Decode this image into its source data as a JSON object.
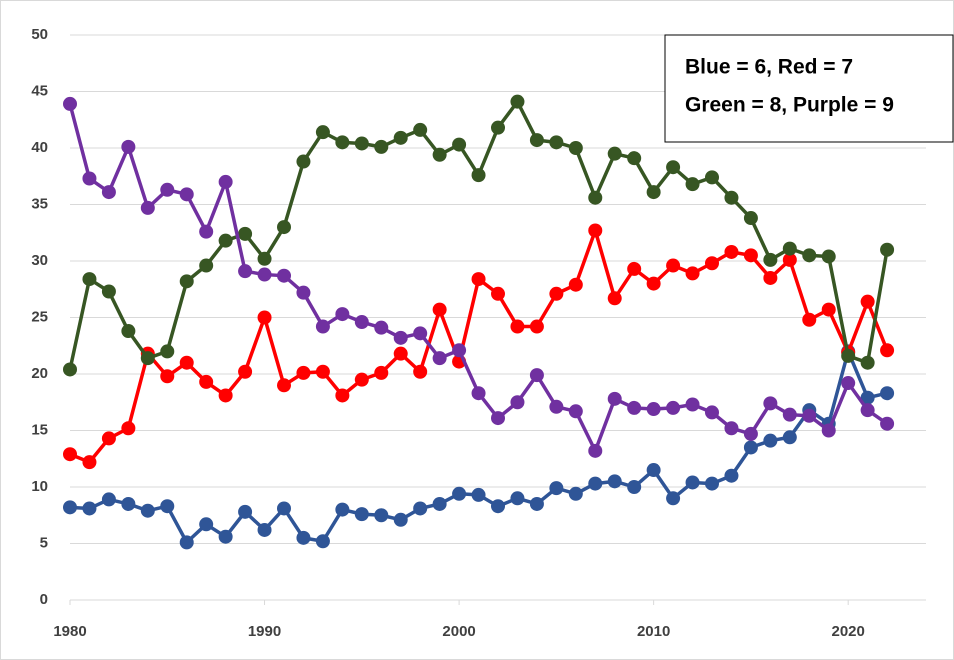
{
  "chart_data": {
    "type": "line",
    "annotations": [
      "Blue = 6, Red = 7",
      "Green = 8, Purple = 9"
    ],
    "x": [
      1980,
      1981,
      1982,
      1983,
      1984,
      1985,
      1986,
      1987,
      1988,
      1989,
      1990,
      1991,
      1992,
      1993,
      1994,
      1995,
      1996,
      1997,
      1998,
      1999,
      2000,
      2001,
      2002,
      2003,
      2004,
      2005,
      2006,
      2007,
      2008,
      2009,
      2010,
      2011,
      2012,
      2013,
      2014,
      2015,
      2016,
      2017,
      2018,
      2019,
      2020,
      2021,
      2022
    ],
    "series": [
      {
        "color": "#2f5597",
        "values": [
          8.2,
          8.1,
          8.9,
          8.5,
          7.9,
          8.3,
          5.1,
          6.7,
          5.6,
          7.8,
          6.2,
          8.1,
          5.5,
          5.2,
          8.0,
          7.6,
          7.5,
          7.1,
          8.1,
          8.5,
          9.4,
          9.3,
          8.3,
          9.0,
          8.5,
          9.9,
          9.4,
          10.3,
          10.5,
          10.0,
          11.5,
          9.0,
          10.4,
          10.3,
          11.0,
          13.5,
          14.1,
          14.4,
          16.8,
          15.6,
          22.0,
          17.9,
          18.3
        ]
      },
      {
        "color": "#ff0000",
        "values": [
          12.9,
          12.2,
          14.3,
          15.2,
          21.8,
          19.8,
          21.0,
          19.3,
          18.1,
          20.2,
          25.0,
          19.0,
          20.1,
          20.2,
          18.1,
          19.5,
          20.1,
          21.8,
          20.2,
          25.7,
          21.1,
          28.4,
          27.1,
          24.2,
          24.2,
          27.1,
          27.9,
          32.7,
          26.7,
          29.3,
          28.0,
          29.6,
          28.9,
          29.8,
          30.8,
          30.5,
          28.5,
          30.1,
          24.8,
          25.7,
          21.9,
          26.4,
          22.1
        ]
      },
      {
        "color": "#375623",
        "values": [
          20.4,
          28.4,
          27.3,
          23.8,
          21.4,
          22.0,
          28.2,
          29.6,
          31.8,
          32.4,
          30.2,
          33.0,
          38.8,
          41.4,
          40.5,
          40.4,
          40.1,
          40.9,
          41.6,
          39.4,
          40.3,
          37.6,
          41.8,
          44.1,
          40.7,
          40.5,
          40.0,
          35.6,
          39.5,
          39.1,
          36.1,
          38.3,
          36.8,
          37.4,
          35.6,
          33.8,
          30.1,
          31.1,
          30.5,
          30.4,
          21.6,
          21.0,
          31.0
        ]
      },
      {
        "color": "#7030a0",
        "values": [
          43.9,
          37.3,
          36.1,
          40.1,
          34.7,
          36.3,
          35.9,
          32.6,
          37.0,
          29.1,
          28.8,
          28.7,
          27.2,
          24.2,
          25.3,
          24.6,
          24.1,
          23.2,
          23.6,
          21.4,
          22.1,
          18.3,
          16.1,
          17.5,
          19.9,
          17.1,
          16.7,
          13.2,
          17.8,
          17.0,
          16.9,
          17.0,
          17.3,
          16.6,
          15.2,
          14.7,
          17.4,
          16.4,
          16.3,
          15.0,
          19.2,
          16.8,
          15.6
        ]
      }
    ],
    "xlim": [
      1980,
      2024
    ],
    "xticks": [
      1980,
      1990,
      2000,
      2010,
      2020
    ],
    "ylim": [
      0,
      50
    ],
    "yticks": [
      0,
      5,
      10,
      15,
      20,
      25,
      30,
      35,
      40,
      45,
      50
    ],
    "grid": true
  }
}
